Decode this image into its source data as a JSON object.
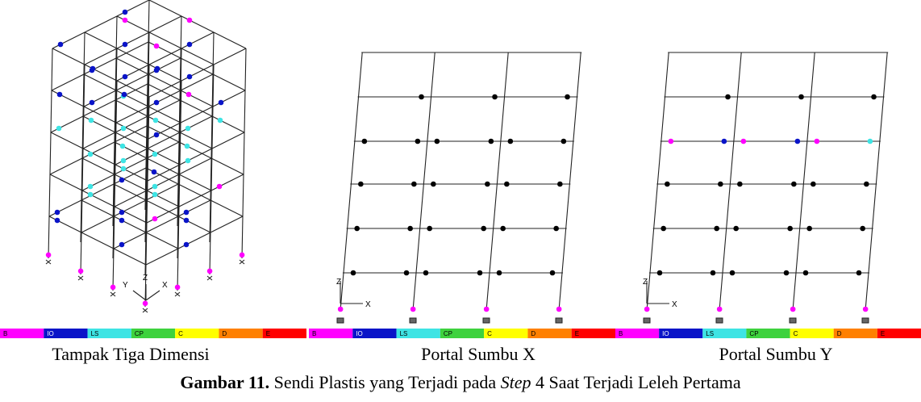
{
  "panels": [
    {
      "caption": "Tampak Tiga Dimensi",
      "axes": [
        "Y",
        "Z",
        "X"
      ],
      "legend": [
        "B",
        "IO",
        "LS",
        "CP",
        "C",
        "D",
        "E"
      ]
    },
    {
      "caption": "Portal Sumbu X",
      "axes": [
        "Z",
        "X"
      ],
      "legend": [
        "B",
        "IO",
        "LS",
        "CP",
        "C",
        "D",
        "E"
      ]
    },
    {
      "caption": "Portal Sumbu Y",
      "axes": [
        "Z",
        "X"
      ],
      "legend": [
        "B",
        "IO",
        "LS",
        "CP",
        "C",
        "D",
        "E"
      ]
    }
  ],
  "figure_caption": {
    "label": "Gambar 11.",
    "text": "Sendi Plastis yang Terjadi pada",
    "italic": "Step",
    "text_end": "4 Saat Terjadi Leleh Pertama"
  }
}
